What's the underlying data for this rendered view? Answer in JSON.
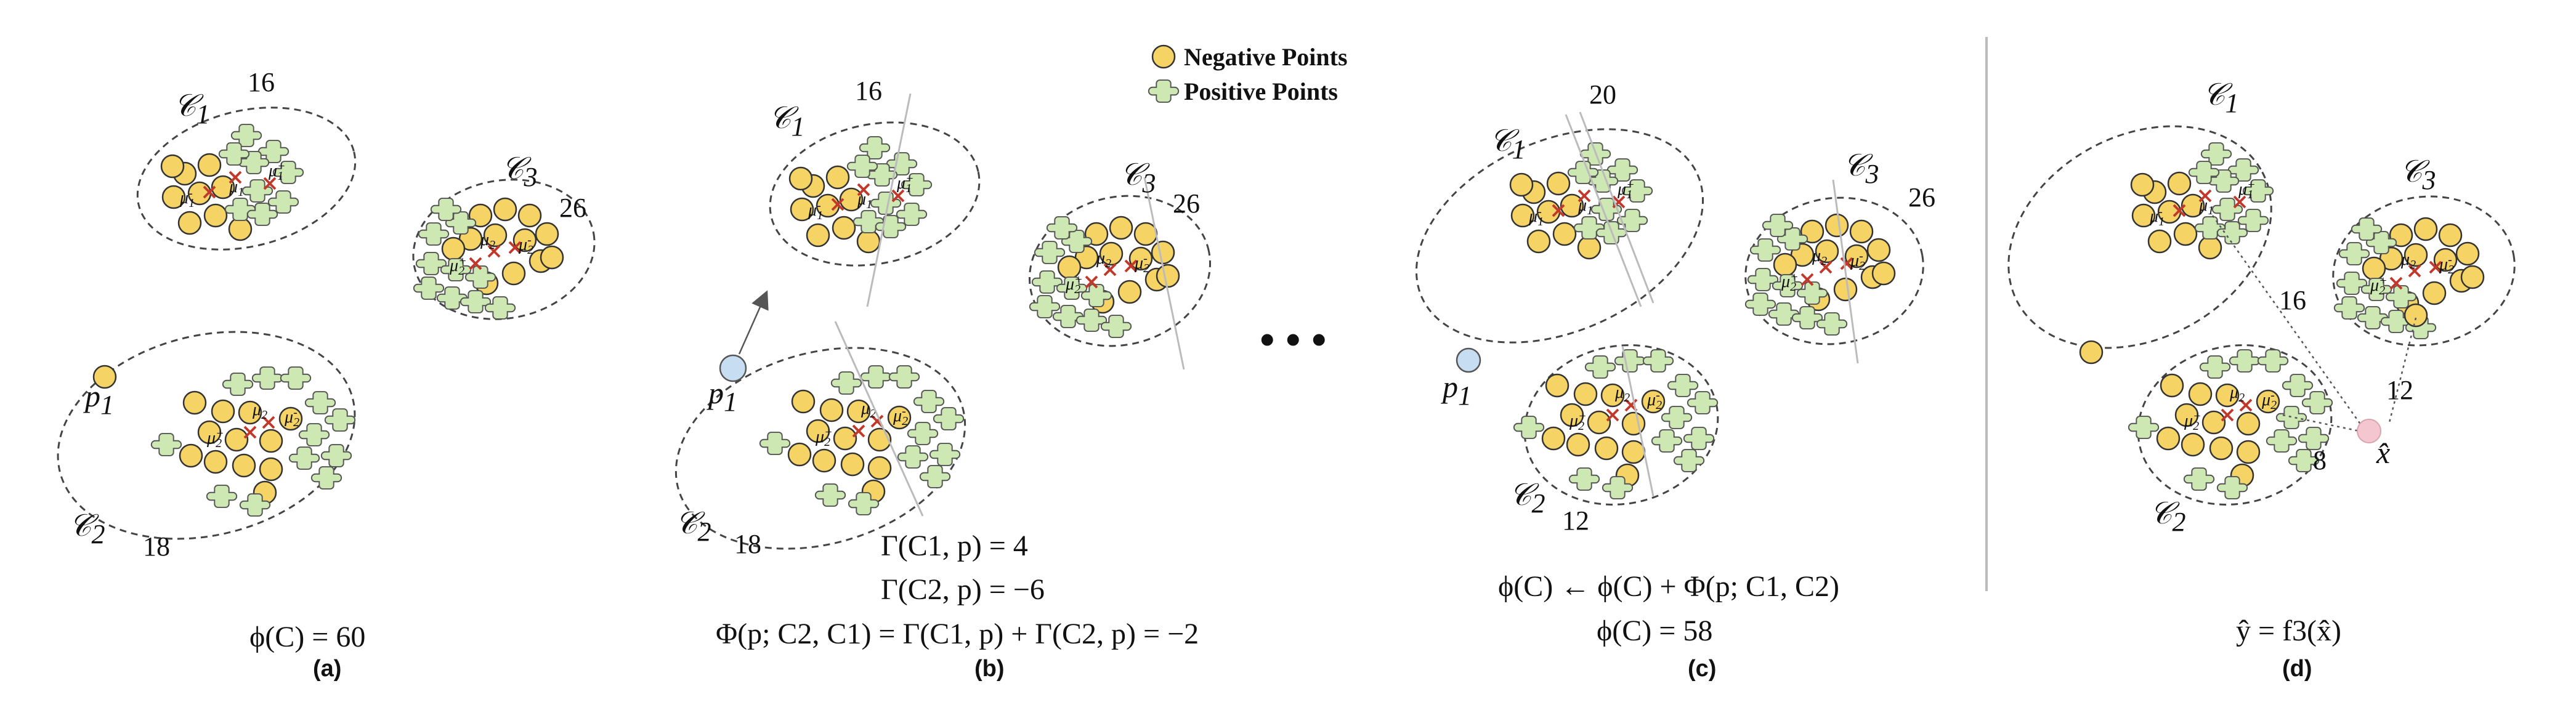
{
  "legend": {
    "negative": "Negative Points",
    "positive": "Positive Points"
  },
  "panels": {
    "a": {
      "caption": "(a)",
      "equation": "ϕ(C) = 60",
      "clusters": [
        {
          "label": "C1",
          "size": "16"
        },
        {
          "label": "C2",
          "size": "18"
        },
        {
          "label": "C3",
          "size": "26"
        }
      ],
      "point_label": "p1"
    },
    "b": {
      "caption": "(b)",
      "equations": [
        "Γ(C1, p) = 4",
        "Γ(C2, p) = −6",
        "Φ(p; C2, C1) = Γ(C1, p) + Γ(C2, p) = −2"
      ],
      "clusters": [
        {
          "label": "C1",
          "size": "16"
        },
        {
          "label": "C2",
          "size": "18"
        },
        {
          "label": "C3",
          "size": "26"
        }
      ],
      "point_label": "p1"
    },
    "ellipsis": "• • •",
    "c": {
      "caption": "(c)",
      "equations": [
        "ϕ(C) ← ϕ(C) + Φ(p; C1, C2)",
        "ϕ(C) = 58"
      ],
      "clusters": [
        {
          "label": "C1",
          "size": "20"
        },
        {
          "label": "C2",
          "size": "12"
        },
        {
          "label": "C3",
          "size": "26"
        }
      ],
      "point_label": "p1"
    },
    "d": {
      "caption": "(d)",
      "equation": "ŷ = f3(x̂)",
      "clusters": [
        {
          "label": "C1"
        },
        {
          "label": "C2"
        },
        {
          "label": "C3"
        }
      ],
      "distances": [
        "16",
        "12",
        "8"
      ],
      "query_label": "x̂"
    }
  },
  "colors": {
    "negative_fill": "#f6d365",
    "positive_fill": "#cde8b2",
    "center_cross": "#c0392b",
    "query_point": "#f4c7d0",
    "new_point": "#c6ddf2",
    "highlight_cluster": "#e07b70"
  }
}
